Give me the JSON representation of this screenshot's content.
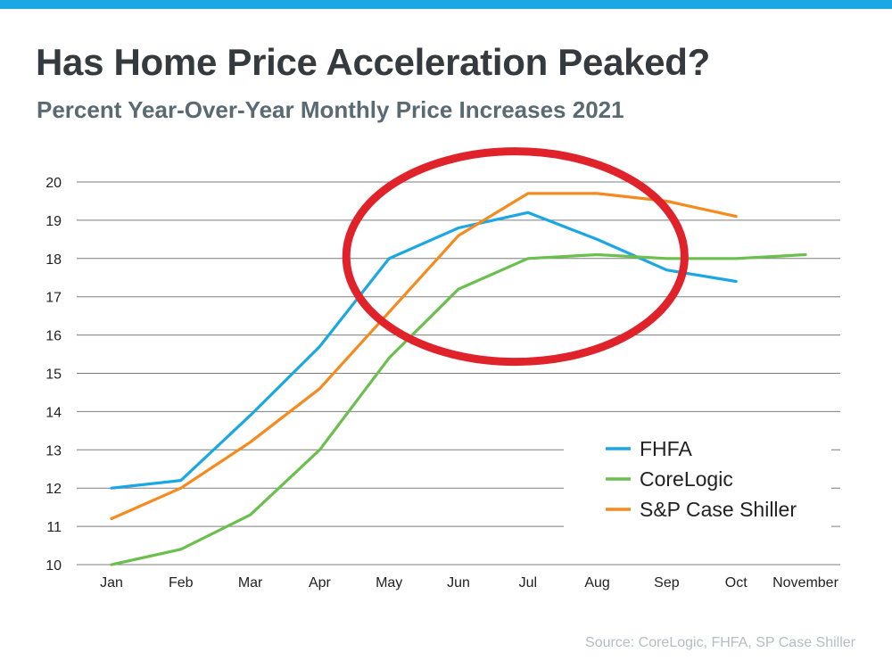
{
  "title": "Has Home Price Acceleration Peaked?",
  "subtitle": "Percent Year-Over-Year Monthly Price Increases 2021",
  "source": "Source: CoreLogic, FHFA, SP Case Shiller",
  "colors": {
    "accent_bar": "#1aa7e4",
    "highlight_circle": "#e0222a"
  },
  "chart_data": {
    "type": "line",
    "categories": [
      "Jan",
      "Feb",
      "Mar",
      "Apr",
      "May",
      "Jun",
      "Jul",
      "Aug",
      "Sep",
      "Oct",
      "November"
    ],
    "ylim": [
      10,
      20
    ],
    "yticks": [
      "10",
      "11",
      "12",
      "13",
      "14",
      "15",
      "16",
      "17",
      "18",
      "19",
      "20"
    ],
    "grid": true,
    "legend_position": "bottom-right",
    "series": [
      {
        "name": "FHFA",
        "color": "#1aa7e4",
        "values": [
          12.0,
          12.2,
          13.9,
          15.7,
          18.0,
          18.8,
          19.2,
          18.5,
          17.7,
          17.4,
          null
        ]
      },
      {
        "name": "CoreLogic",
        "color": "#6bbf4e",
        "values": [
          10.0,
          10.4,
          11.3,
          13.0,
          15.4,
          17.2,
          18.0,
          18.1,
          18.0,
          18.0,
          18.1
        ]
      },
      {
        "name": "S&P Case Shiller",
        "color": "#f58a1f",
        "values": [
          11.2,
          12.0,
          13.2,
          14.6,
          16.6,
          18.6,
          19.7,
          19.7,
          19.5,
          19.1,
          null
        ]
      }
    ],
    "annotation": {
      "type": "ellipse",
      "around": [
        "May",
        "Sep"
      ],
      "y_range": [
        15.3,
        20.8
      ]
    }
  }
}
